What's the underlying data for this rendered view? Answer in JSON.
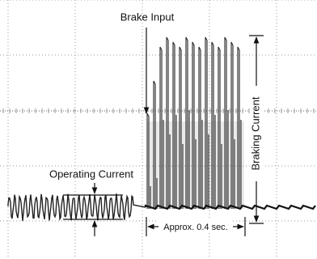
{
  "labels": {
    "brake_input": "Brake Input",
    "operating_current": "Operating Current",
    "braking_current": "Braking Current",
    "duration": "Approx. 0.4 sec."
  }
}
